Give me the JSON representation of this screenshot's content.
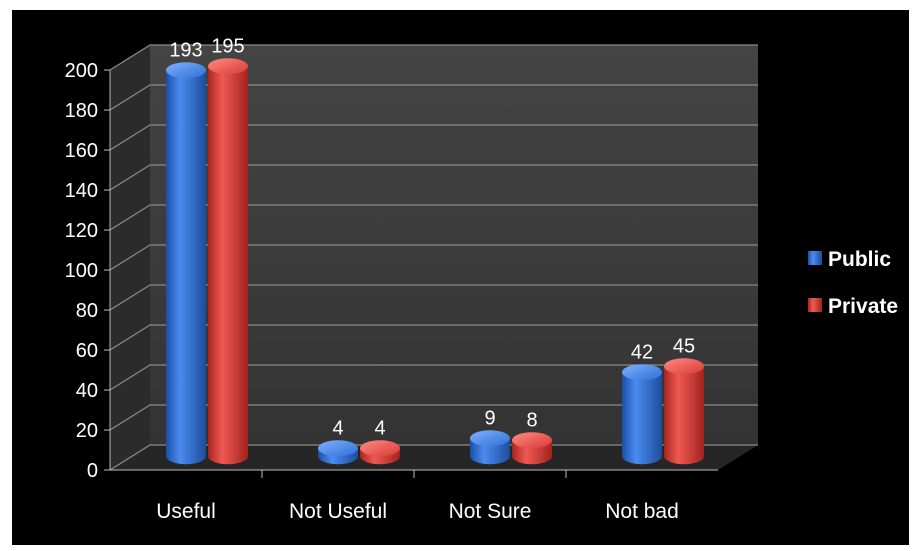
{
  "chart_data": {
    "type": "bar",
    "categories": [
      "Useful",
      "Not Useful",
      "Not Sure",
      "Not bad"
    ],
    "series": [
      {
        "name": "Public",
        "values": [
          193,
          4,
          9,
          42
        ],
        "color": "#2f6fd6"
      },
      {
        "name": "Private",
        "values": [
          195,
          4,
          8,
          45
        ],
        "color": "#d93a36"
      }
    ],
    "y_ticks": [
      "0",
      "20",
      "40",
      "60",
      "80",
      "100",
      "120",
      "140",
      "160",
      "180",
      "200"
    ],
    "ylim": [
      0,
      200
    ],
    "grid": true,
    "legend_position": "right",
    "background": "#000000",
    "wall_color": "#3a3a3a"
  }
}
